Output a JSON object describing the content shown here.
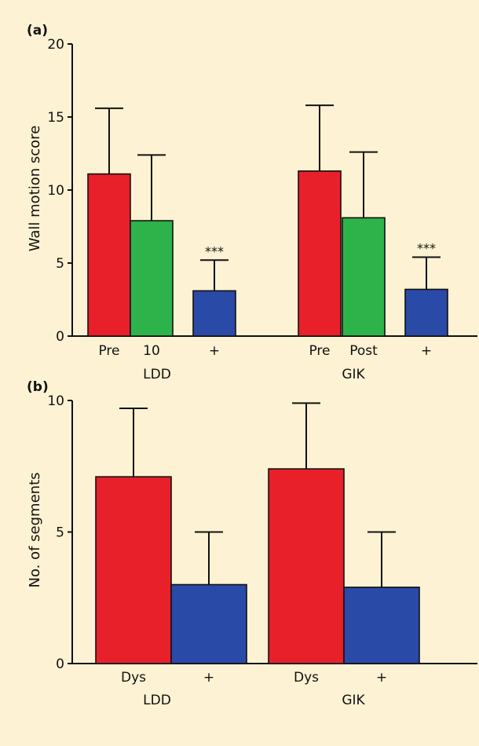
{
  "chart_data": [
    {
      "panel": "(a)",
      "type": "bar",
      "ylabel": "Wall motion score",
      "ylim": [
        0,
        20
      ],
      "yticks": [
        "0",
        "5",
        "10",
        "15",
        "20"
      ],
      "groups": [
        {
          "label": "LDD",
          "bars": [
            {
              "label": "Pre",
              "value": 11.1,
              "error": 4.5,
              "color": "#e8202a",
              "annotation": ""
            },
            {
              "label": "10",
              "value": 7.9,
              "error": 4.5,
              "color": "#2db34a",
              "annotation": ""
            },
            {
              "label": "+",
              "value": 3.1,
              "error": 2.1,
              "color": "#2a4aa8",
              "annotation": "***"
            }
          ]
        },
        {
          "label": "GIK",
          "bars": [
            {
              "label": "Pre",
              "value": 11.3,
              "error": 4.5,
              "color": "#e8202a",
              "annotation": ""
            },
            {
              "label": "Post",
              "value": 8.1,
              "error": 4.5,
              "color": "#2db34a",
              "annotation": ""
            },
            {
              "label": "+",
              "value": 3.2,
              "error": 2.2,
              "color": "#2a4aa8",
              "annotation": "***"
            }
          ]
        }
      ]
    },
    {
      "panel": "(b)",
      "type": "bar",
      "ylabel": "No. of segments",
      "ylim": [
        0,
        10
      ],
      "yticks": [
        "0",
        "5",
        "10"
      ],
      "groups": [
        {
          "label": "LDD",
          "bars": [
            {
              "label": "Dys",
              "value": 7.1,
              "error": 2.6,
              "color": "#e8202a",
              "annotation": ""
            },
            {
              "label": "+",
              "value": 3.0,
              "error": 2.0,
              "color": "#2a4aa8",
              "annotation": ""
            }
          ]
        },
        {
          "label": "GIK",
          "bars": [
            {
              "label": "Dys",
              "value": 7.4,
              "error": 2.5,
              "color": "#e8202a",
              "annotation": ""
            },
            {
              "label": "+",
              "value": 2.9,
              "error": 2.1,
              "color": "#2a4aa8",
              "annotation": ""
            }
          ]
        }
      ]
    }
  ]
}
